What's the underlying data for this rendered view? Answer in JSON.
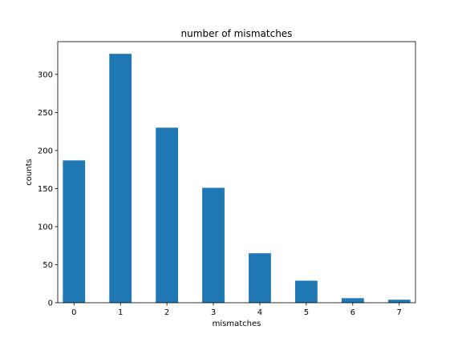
{
  "chart_data": {
    "type": "bar",
    "title": "number of mismatches",
    "xlabel": "mismatches",
    "ylabel": "counts",
    "categories": [
      0,
      1,
      2,
      3,
      4,
      5,
      6,
      7
    ],
    "values": [
      187,
      327,
      230,
      151,
      65,
      29,
      6,
      4
    ],
    "xticks": [
      0,
      1,
      2,
      3,
      4,
      5,
      6,
      7
    ],
    "yticks": [
      0,
      50,
      100,
      150,
      200,
      250,
      300
    ],
    "xlim": [
      -0.35,
      7.35
    ],
    "ylim": [
      0,
      343
    ],
    "grid": false,
    "legend": "none",
    "bar_color": "#1f77b4"
  }
}
